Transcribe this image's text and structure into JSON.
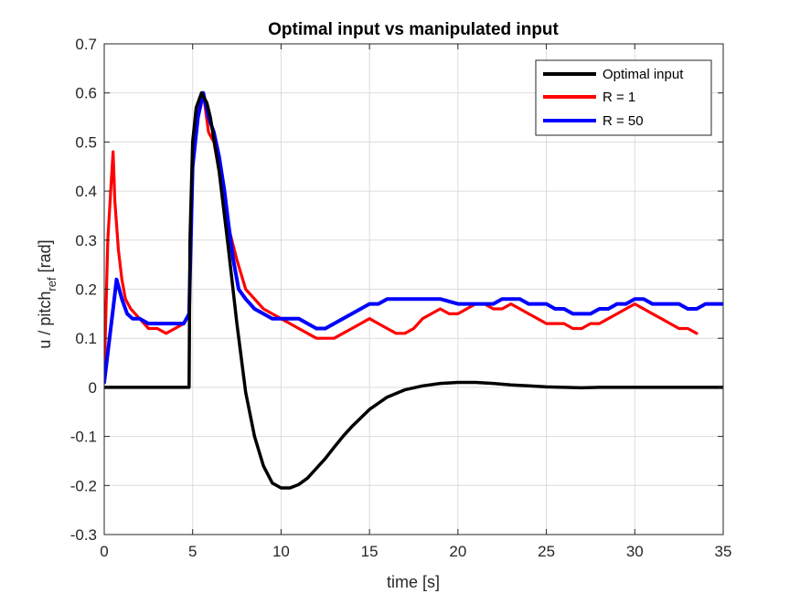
{
  "chart_data": {
    "type": "line",
    "title": "Optimal input vs manipulated input",
    "xlabel": "time [s]",
    "ylabel": {
      "main": "u / pitch",
      "sub": "ref",
      "suffix": " [rad]"
    },
    "xlim": [
      0,
      35
    ],
    "ylim": [
      -0.3,
      0.7
    ],
    "xticks": [
      0,
      5,
      10,
      15,
      20,
      25,
      30,
      35
    ],
    "xtick_labels": [
      "0",
      "5",
      "10",
      "15",
      "20",
      "25",
      "30",
      "35"
    ],
    "yticks": [
      -0.3,
      -0.2,
      -0.1,
      0,
      0.1,
      0.2,
      0.3,
      0.4,
      0.5,
      0.6,
      0.7
    ],
    "ytick_labels": [
      "-0.3",
      "-0.2",
      "-0.1",
      "0",
      "0.1",
      "0.2",
      "0.3",
      "0.4",
      "0.5",
      "0.6",
      "0.7"
    ],
    "grid": true,
    "legend_position": "top-right",
    "series": [
      {
        "name": "Optimal input",
        "color": "#000000",
        "x": [
          0,
          4.8,
          4.85,
          5.0,
          5.2,
          5.5,
          5.8,
          6.0,
          6.5,
          7.0,
          7.5,
          8.0,
          8.5,
          9.0,
          9.5,
          10.0,
          10.5,
          11.0,
          11.5,
          12.0,
          12.5,
          13.0,
          13.5,
          14.0,
          15.0,
          16.0,
          17.0,
          18.0,
          19.0,
          20.0,
          21.0,
          22.0,
          23.0,
          24.0,
          25.0,
          26.0,
          27.0,
          28.0,
          30.0,
          35.0
        ],
        "y": [
          0,
          0,
          0.3,
          0.5,
          0.57,
          0.6,
          0.58,
          0.55,
          0.44,
          0.29,
          0.13,
          -0.01,
          -0.1,
          -0.16,
          -0.195,
          -0.205,
          -0.205,
          -0.198,
          -0.185,
          -0.165,
          -0.145,
          -0.122,
          -0.1,
          -0.08,
          -0.045,
          -0.02,
          -0.005,
          0.003,
          0.008,
          0.01,
          0.01,
          0.008,
          0.005,
          0.003,
          0.001,
          0.0,
          -0.001,
          0.0,
          0.0,
          0.0
        ]
      },
      {
        "name": "R = 1",
        "color": "#ff0000",
        "x": [
          0,
          0.2,
          0.4,
          0.5,
          0.6,
          0.8,
          1.0,
          1.2,
          1.5,
          2.0,
          2.5,
          3.0,
          3.5,
          4.0,
          4.5,
          4.8,
          5.0,
          5.3,
          5.6,
          5.9,
          6.2,
          6.5,
          6.8,
          7.0,
          7.5,
          8.0,
          8.5,
          9.0,
          9.5,
          10.0,
          10.5,
          11.0,
          11.5,
          12.0,
          12.5,
          13.0,
          13.5,
          14.0,
          14.5,
          15.0,
          15.5,
          16.0,
          16.5,
          17.0,
          17.5,
          18.0,
          18.5,
          19.0,
          19.5,
          20.0,
          20.5,
          21.0,
          21.5,
          22.0,
          22.5,
          23.0,
          23.5,
          24.0,
          24.5,
          25.0,
          25.5,
          26.0,
          26.5,
          27.0,
          27.5,
          28.0,
          28.5,
          29.0,
          29.5,
          30.0,
          30.5,
          31.0,
          31.5,
          32.0,
          32.5,
          33.0,
          33.5
        ],
        "y": [
          0.02,
          0.3,
          0.42,
          0.48,
          0.38,
          0.28,
          0.22,
          0.18,
          0.16,
          0.14,
          0.12,
          0.12,
          0.11,
          0.12,
          0.13,
          0.15,
          0.45,
          0.56,
          0.6,
          0.52,
          0.5,
          0.44,
          0.38,
          0.33,
          0.26,
          0.2,
          0.18,
          0.16,
          0.15,
          0.14,
          0.13,
          0.12,
          0.11,
          0.1,
          0.1,
          0.1,
          0.11,
          0.12,
          0.13,
          0.14,
          0.13,
          0.12,
          0.11,
          0.11,
          0.12,
          0.14,
          0.15,
          0.16,
          0.15,
          0.15,
          0.16,
          0.17,
          0.17,
          0.16,
          0.16,
          0.17,
          0.16,
          0.15,
          0.14,
          0.13,
          0.13,
          0.13,
          0.12,
          0.12,
          0.13,
          0.13,
          0.14,
          0.15,
          0.16,
          0.17,
          0.16,
          0.15,
          0.14,
          0.13,
          0.12,
          0.12,
          0.11
        ]
      },
      {
        "name": "R = 50",
        "color": "#0000ff",
        "x": [
          0,
          0.3,
          0.5,
          0.7,
          1.0,
          1.3,
          1.6,
          2.0,
          2.5,
          3.0,
          3.5,
          4.0,
          4.5,
          4.8,
          5.0,
          5.3,
          5.6,
          5.9,
          6.2,
          6.5,
          6.8,
          7.0,
          7.3,
          7.6,
          8.0,
          8.5,
          9.0,
          9.5,
          10.0,
          10.5,
          11.0,
          11.5,
          12.0,
          12.5,
          13.0,
          13.5,
          14.0,
          14.5,
          15.0,
          15.5,
          16.0,
          17.0,
          18.0,
          19.0,
          20.0,
          21.0,
          22.0,
          22.5,
          23.0,
          23.5,
          24.0,
          24.5,
          25.0,
          25.5,
          26.0,
          26.5,
          27.0,
          27.5,
          28.0,
          28.5,
          29.0,
          29.5,
          30.0,
          30.5,
          31.0,
          31.5,
          32.0,
          32.5,
          33.0,
          33.5,
          34.0,
          34.5,
          35.0
        ],
        "y": [
          0.01,
          0.1,
          0.16,
          0.22,
          0.18,
          0.15,
          0.14,
          0.14,
          0.13,
          0.13,
          0.13,
          0.13,
          0.13,
          0.15,
          0.45,
          0.55,
          0.6,
          0.55,
          0.52,
          0.47,
          0.4,
          0.34,
          0.26,
          0.2,
          0.18,
          0.16,
          0.15,
          0.14,
          0.14,
          0.14,
          0.14,
          0.13,
          0.12,
          0.12,
          0.13,
          0.14,
          0.15,
          0.16,
          0.17,
          0.17,
          0.18,
          0.18,
          0.18,
          0.18,
          0.17,
          0.17,
          0.17,
          0.18,
          0.18,
          0.18,
          0.17,
          0.17,
          0.17,
          0.16,
          0.16,
          0.15,
          0.15,
          0.15,
          0.16,
          0.16,
          0.17,
          0.17,
          0.18,
          0.18,
          0.17,
          0.17,
          0.17,
          0.17,
          0.16,
          0.16,
          0.17,
          0.17,
          0.17
        ]
      }
    ]
  }
}
